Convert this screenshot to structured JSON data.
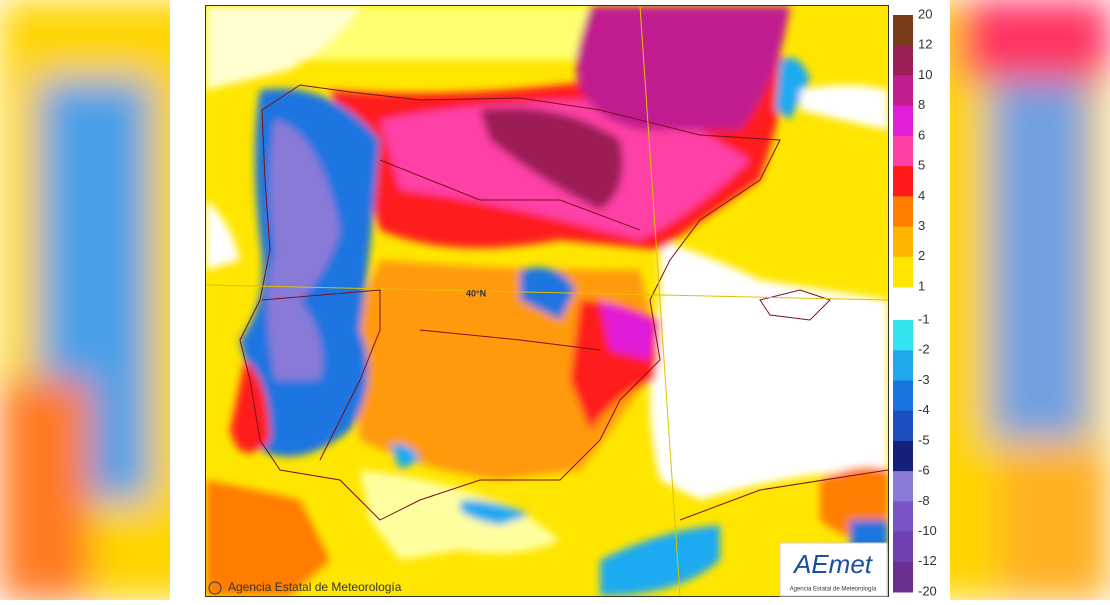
{
  "map": {
    "positive_labels": [
      20,
      12,
      10,
      8,
      6,
      5,
      4,
      3,
      2,
      1
    ],
    "positive_colors": [
      "#7a3d1c",
      "#9c1f55",
      "#c11d8f",
      "#e11ed8",
      "#ff3fa6",
      "#ff1a1a",
      "#ff7d00",
      "#ffb400",
      "#ffe600"
    ],
    "negative_labels": [
      -1,
      -2,
      -3,
      -4,
      -5,
      -6,
      -8,
      -10,
      -12,
      -20
    ],
    "negative_colors": [
      "#33e3ee",
      "#1faaf0",
      "#1a74e0",
      "#1d4fc0",
      "#14207a",
      "#8a7ad8",
      "#7a55c8",
      "#7040b0",
      "#6a2f90"
    ],
    "latitude_label": "40°N",
    "credit": "Agencia Estatal de Meteorología",
    "logo": {
      "text": "AEmet",
      "subtitle": "Agencia Estatal de Meteorología"
    }
  }
}
